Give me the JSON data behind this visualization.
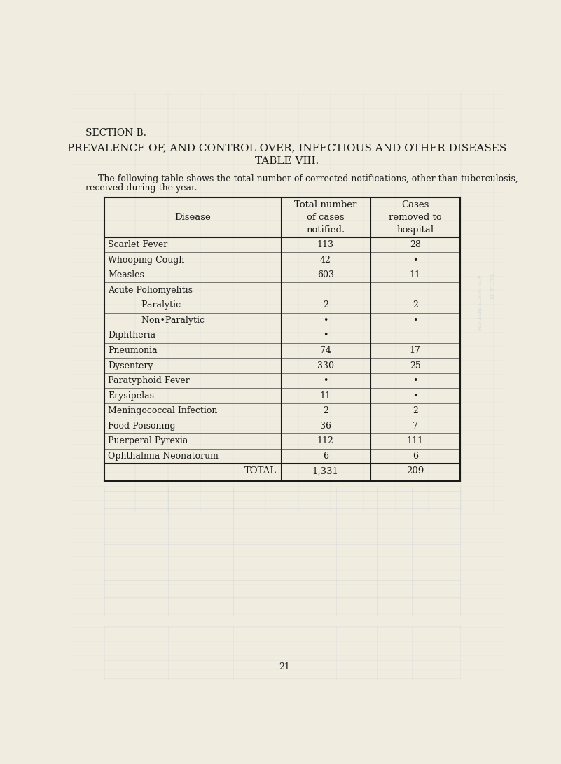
{
  "bg_color": "#f0ece0",
  "section_title": "SECTION B.",
  "title1": "PREVALENCE OF, AND CONTROL OVER, INFECTIOUS AND OTHER DISEASES",
  "title2": "TABLE VIII.",
  "intro_line1": "The following table shows the total number of corrected notifications, other than tuberculosis,",
  "intro_line2": "received during the year.",
  "rows": [
    [
      "Scarlet Fever",
      "113",
      "28"
    ],
    [
      "Whooping Cough",
      "42",
      "•"
    ],
    [
      "Measles",
      "603",
      "11"
    ],
    [
      "Acute Poliomyelitis",
      "",
      ""
    ],
    [
      "            Paralytic",
      "2",
      "2"
    ],
    [
      "            Non•Paralytic",
      "•",
      "•"
    ],
    [
      "Diphtheria",
      "•",
      "—"
    ],
    [
      "Pneumonia",
      "74",
      "17"
    ],
    [
      "Dysentery",
      "330",
      "25"
    ],
    [
      "Paratyphoid Fever",
      "•",
      "•"
    ],
    [
      "Erysipelas",
      "11",
      "•"
    ],
    [
      "Meningococcal Infection",
      "2",
      "2"
    ],
    [
      "Food Poisoning",
      "36",
      "7"
    ],
    [
      "Puerperal Pyrexia",
      "112",
      "111"
    ],
    [
      "Ophthalmia Neonatorum",
      "6",
      "6"
    ]
  ],
  "total_row": [
    "TOTAL",
    "1,331",
    "209"
  ],
  "page_number": "21",
  "text_color": "#1a1a1a",
  "table_border_color": "#1a1a1a",
  "ghost_color": "#aabbd0",
  "header_font_size": 9.5,
  "body_font_size": 9,
  "title_font_size": 11
}
